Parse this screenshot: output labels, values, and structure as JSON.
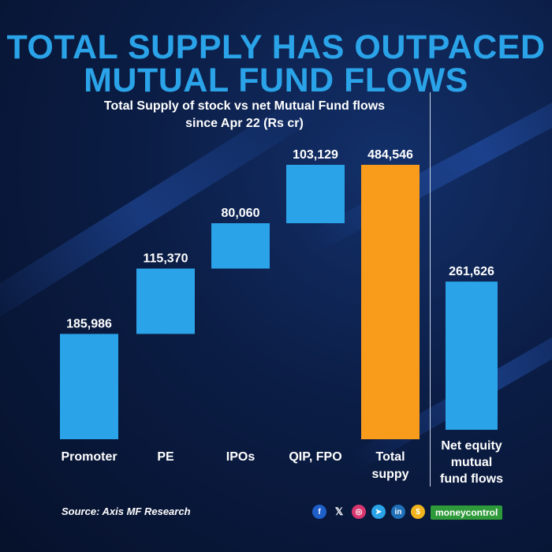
{
  "title": {
    "line1": "TOTAL SUPPLY HAS OUTPACED",
    "line2": "MUTUAL FUND FLOWS"
  },
  "chart_data": {
    "type": "bar",
    "subtitle_line1": "Total Supply of stock vs net Mutual Fund flows",
    "subtitle_line2": "since Apr 22 (Rs cr)",
    "waterfall": [
      {
        "label_lines": [
          "Promoter"
        ],
        "value": 185986,
        "value_label": "185,986",
        "base": 0,
        "color": "#2aa3e8"
      },
      {
        "label_lines": [
          "PE"
        ],
        "value": 115370,
        "value_label": "115,370",
        "base": 185986,
        "color": "#2aa3e8"
      },
      {
        "label_lines": [
          "IPOs"
        ],
        "value": 80060,
        "value_label": "80,060",
        "base": 301356,
        "color": "#2aa3e8"
      },
      {
        "label_lines": [
          "QIP, FPO"
        ],
        "value": 103129,
        "value_label": "103,129",
        "base": 381416,
        "color": "#2aa3e8"
      },
      {
        "label_lines": [
          "Total",
          "suppy"
        ],
        "value": 484546,
        "value_label": "484,546",
        "base": 0,
        "color": "#f99c1c"
      }
    ],
    "comparison": [
      {
        "label_lines": [
          "Net equity",
          "mutual",
          "fund flows"
        ],
        "value": 261626,
        "value_label": "261,626",
        "base": 0,
        "color": "#2aa3e8"
      }
    ],
    "ylim": [
      0,
      500000
    ]
  },
  "footer": {
    "source": "Source: Axis MF Research",
    "social_icons": [
      "f",
      "𝕏",
      "◎",
      "➤",
      "in",
      "$"
    ],
    "brand": "moneycontrol"
  }
}
